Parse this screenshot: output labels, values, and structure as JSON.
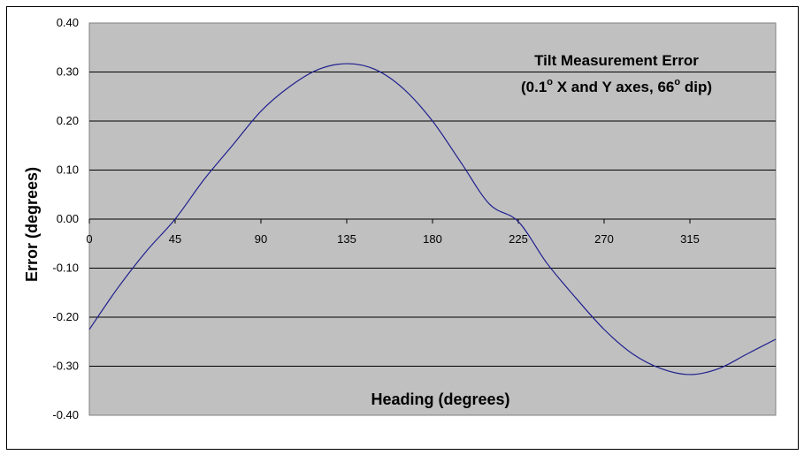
{
  "chart_data": {
    "type": "line",
    "title": "Tilt Measurement Error",
    "subtitle_parts": [
      "(0.1",
      "o",
      " X and Y axes, 66",
      "o",
      " dip)"
    ],
    "xlabel": "Heading (degrees)",
    "ylabel": "Error (degrees)",
    "xlim": [
      0,
      360
    ],
    "ylim": [
      -0.4,
      0.4
    ],
    "x_ticks": [
      "0",
      "45",
      "90",
      "135",
      "180",
      "225",
      "270",
      "315"
    ],
    "y_ticks": [
      "0.40",
      "0.30",
      "0.20",
      "0.10",
      "0.00",
      "-0.10",
      "-0.20",
      "-0.30",
      "-0.40"
    ],
    "grid": true,
    "colors": {
      "plot_background": "#c0c0c0",
      "line": "#1f1f8f",
      "grid": "#000000"
    },
    "series": [
      {
        "x": [
          0,
          15,
          30,
          45,
          60,
          75,
          90,
          105,
          120,
          135,
          150,
          165,
          180,
          195,
          210,
          225,
          240,
          255,
          270,
          285,
          300,
          315,
          330,
          345,
          360
        ],
        "values": [
          -0.225,
          -0.14,
          -0.065,
          0.0,
          0.08,
          0.15,
          0.22,
          0.27,
          0.305,
          0.317,
          0.305,
          0.265,
          0.2,
          0.115,
          0.03,
          -0.005,
          -0.09,
          -0.16,
          -0.225,
          -0.275,
          -0.305,
          -0.317,
          -0.305,
          -0.275,
          -0.245
        ]
      }
    ]
  }
}
